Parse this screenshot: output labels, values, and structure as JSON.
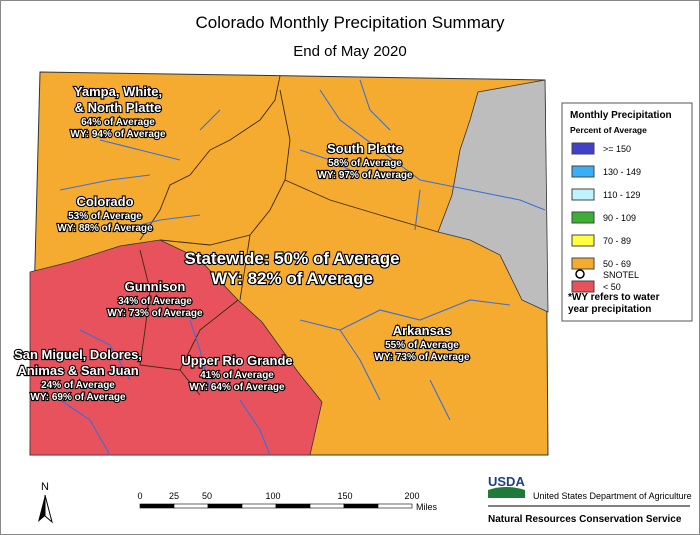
{
  "title": "Colorado Monthly Precipitation Summary",
  "subtitle": "End of May 2020",
  "regions": [
    {
      "name": [
        "Yampa, White,",
        "& North Platte"
      ],
      "percent": "64% of Average",
      "wy": "WY: 94% of Average"
    },
    {
      "name": [
        "South Platte"
      ],
      "percent": "58% of Average",
      "wy": "WY: 97% of Average"
    },
    {
      "name": [
        "Colorado"
      ],
      "percent": "53% of Average",
      "wy": "WY: 88% of Average"
    },
    {
      "name": [
        "Gunnison"
      ],
      "percent": "34% of Average",
      "wy": "WY: 73% of Average"
    },
    {
      "name": [
        "San Miguel, Dolores,",
        "Animas & San Juan"
      ],
      "percent": "24% of Average",
      "wy": "WY: 69% of Average"
    },
    {
      "name": [
        "Upper Rio Grande"
      ],
      "percent": "41% of Average",
      "wy": "WY: 64% of Average"
    },
    {
      "name": [
        "Arkansas"
      ],
      "percent": "55% of Average",
      "wy": "WY: 73% of Average"
    }
  ],
  "statewide": [
    "Statewide: 50% of Average",
    "WY: 82% of Average"
  ],
  "legend": {
    "title": "Monthly Precipitation",
    "subtitle": "Percent of Average",
    "items": [
      {
        "label": ">= 150",
        "color": "#4040c8"
      },
      {
        "label": "130 - 149",
        "color": "#3aaef8"
      },
      {
        "label": "110 - 129",
        "color": "#bff4ff"
      },
      {
        "label": "90 - 109",
        "color": "#3cb034"
      },
      {
        "label": "70 - 89",
        "color": "#ffff40"
      },
      {
        "label": "50 - 69",
        "color": "#f5ab30"
      },
      {
        "label": "< 50",
        "color": "#e8525c"
      }
    ],
    "snotel": "SNOTEL",
    "note": [
      "*WY refers to water",
      "year precipitation"
    ]
  },
  "scale": {
    "ticks": [
      "0",
      "25",
      "50",
      "100",
      "150",
      "200"
    ],
    "unit": "Miles"
  },
  "north": "N",
  "agency": {
    "logo": "USDA",
    "department": "United States Department of Agriculture",
    "service": "Natural Resources Conservation Service"
  }
}
